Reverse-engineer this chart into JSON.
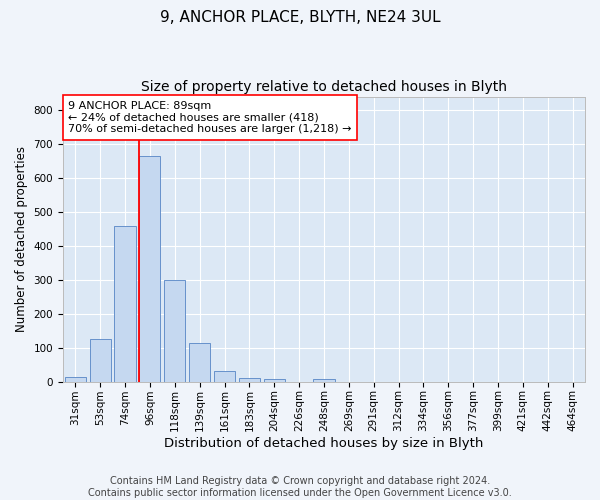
{
  "title1": "9, ANCHOR PLACE, BLYTH, NE24 3UL",
  "title2": "Size of property relative to detached houses in Blyth",
  "xlabel": "Distribution of detached houses by size in Blyth",
  "ylabel": "Number of detached properties",
  "categories": [
    "31sqm",
    "53sqm",
    "74sqm",
    "96sqm",
    "118sqm",
    "139sqm",
    "161sqm",
    "183sqm",
    "204sqm",
    "226sqm",
    "248sqm",
    "269sqm",
    "291sqm",
    "312sqm",
    "334sqm",
    "356sqm",
    "377sqm",
    "399sqm",
    "421sqm",
    "442sqm",
    "464sqm"
  ],
  "values": [
    15,
    125,
    460,
    665,
    300,
    115,
    30,
    12,
    8,
    0,
    8,
    0,
    0,
    0,
    0,
    0,
    0,
    0,
    0,
    0,
    0
  ],
  "bar_color": "#c5d8f0",
  "bar_edge_color": "#5585c5",
  "ylim": [
    0,
    840
  ],
  "yticks": [
    0,
    100,
    200,
    300,
    400,
    500,
    600,
    700,
    800
  ],
  "red_line_bin": 3,
  "annotation_text1": "9 ANCHOR PLACE: 89sqm",
  "annotation_text2": "← 24% of detached houses are smaller (418)",
  "annotation_text3": "70% of semi-detached houses are larger (1,218) →",
  "footer1": "Contains HM Land Registry data © Crown copyright and database right 2024.",
  "footer2": "Contains public sector information licensed under the Open Government Licence v3.0.",
  "fig_bg_color": "#f0f4fa",
  "plot_bg_color": "#dce8f5",
  "grid_color": "#ffffff",
  "title1_fontsize": 11,
  "title2_fontsize": 10,
  "xlabel_fontsize": 9.5,
  "ylabel_fontsize": 8.5,
  "tick_fontsize": 7.5,
  "annotation_fontsize": 8,
  "footer_fontsize": 7
}
